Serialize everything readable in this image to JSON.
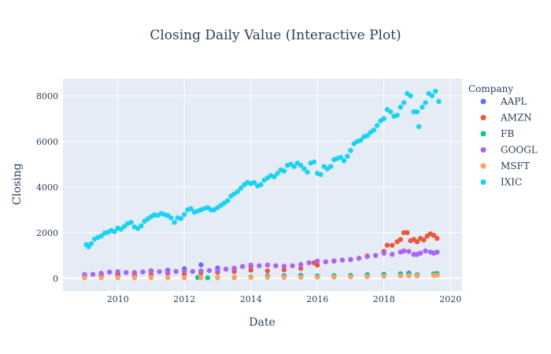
{
  "chart_data": {
    "type": "scatter",
    "title": "Closing Daily Value (Interactive Plot)",
    "xlabel": "Date",
    "ylabel": "Closing",
    "x_range": [
      2008.35,
      2020.35
    ],
    "ylim": [
      -560,
      8750
    ],
    "x_ticks": [
      2010,
      2012,
      2014,
      2016,
      2018,
      2020
    ],
    "y_ticks": [
      0,
      2000,
      4000,
      6000,
      8000
    ],
    "x_tick_labels": [
      "2010",
      "2012",
      "2014",
      "2016",
      "2018",
      "2020"
    ],
    "y_tick_labels": [
      "0",
      "2000",
      "4000",
      "6000",
      "8000"
    ],
    "grid": true,
    "legend_title": "Company",
    "legend_position": "right",
    "series": [
      {
        "name": "AAPL",
        "color": "#636efa",
        "points": [
          [
            2009.0,
            85
          ],
          [
            2009.5,
            140
          ],
          [
            2010.0,
            200
          ],
          [
            2010.5,
            250
          ],
          [
            2011.0,
            330
          ],
          [
            2011.5,
            350
          ],
          [
            2012.0,
            420
          ],
          [
            2012.5,
            590
          ],
          [
            2013.0,
            450
          ],
          [
            2013.5,
            420
          ],
          [
            2014.0,
            530
          ],
          [
            2014.5,
            95
          ],
          [
            2015.0,
            110
          ],
          [
            2015.5,
            125
          ],
          [
            2016.0,
            97
          ],
          [
            2016.5,
            100
          ],
          [
            2017.0,
            120
          ],
          [
            2017.5,
            150
          ],
          [
            2018.0,
            170
          ],
          [
            2018.5,
            195
          ],
          [
            2018.75,
            225
          ],
          [
            2019.0,
            155
          ],
          [
            2019.5,
            200
          ],
          [
            2019.6,
            208
          ]
        ]
      },
      {
        "name": "AMZN",
        "color": "#ef553b",
        "points": [
          [
            2009.0,
            55
          ],
          [
            2009.5,
            80
          ],
          [
            2010.0,
            125
          ],
          [
            2010.5,
            120
          ],
          [
            2011.0,
            185
          ],
          [
            2011.5,
            215
          ],
          [
            2012.0,
            180
          ],
          [
            2012.5,
            235
          ],
          [
            2013.0,
            260
          ],
          [
            2013.5,
            300
          ],
          [
            2014.0,
            360
          ],
          [
            2014.5,
            320
          ],
          [
            2015.0,
            370
          ],
          [
            2015.5,
            430
          ],
          [
            2015.9,
            680
          ],
          [
            2016.0,
            580
          ],
          [
            2016.5,
            760
          ],
          [
            2017.0,
            820
          ],
          [
            2017.5,
            980
          ],
          [
            2018.0,
            1180
          ],
          [
            2018.1,
            1450
          ],
          [
            2018.25,
            1450
          ],
          [
            2018.4,
            1600
          ],
          [
            2018.5,
            1700
          ],
          [
            2018.6,
            2000
          ],
          [
            2018.7,
            2000
          ],
          [
            2018.8,
            1650
          ],
          [
            2018.9,
            1700
          ],
          [
            2019.0,
            1600
          ],
          [
            2019.1,
            1750
          ],
          [
            2019.2,
            1680
          ],
          [
            2019.3,
            1850
          ],
          [
            2019.4,
            1950
          ],
          [
            2019.5,
            1880
          ],
          [
            2019.6,
            1750
          ]
        ]
      },
      {
        "name": "FB",
        "color": "#00cc96",
        "points": [
          [
            2012.4,
            38
          ],
          [
            2012.7,
            22
          ],
          [
            2013.0,
            28
          ],
          [
            2013.5,
            45
          ],
          [
            2014.0,
            60
          ],
          [
            2014.5,
            75
          ],
          [
            2015.0,
            78
          ],
          [
            2015.5,
            90
          ],
          [
            2016.0,
            105
          ],
          [
            2016.5,
            120
          ],
          [
            2017.0,
            130
          ],
          [
            2017.5,
            160
          ],
          [
            2018.0,
            180
          ],
          [
            2018.5,
            195
          ],
          [
            2018.75,
            160
          ],
          [
            2019.0,
            140
          ],
          [
            2019.5,
            190
          ],
          [
            2019.6,
            195
          ]
        ]
      },
      {
        "name": "GOOGL",
        "color": "#ab63fa",
        "points": [
          [
            2009.0,
            165
          ],
          [
            2009.25,
            175
          ],
          [
            2009.5,
            220
          ],
          [
            2009.75,
            270
          ],
          [
            2010.0,
            290
          ],
          [
            2010.25,
            250
          ],
          [
            2010.5,
            240
          ],
          [
            2010.75,
            280
          ],
          [
            2011.0,
            300
          ],
          [
            2011.25,
            290
          ],
          [
            2011.5,
            260
          ],
          [
            2011.75,
            300
          ],
          [
            2012.0,
            310
          ],
          [
            2012.25,
            300
          ],
          [
            2012.5,
            320
          ],
          [
            2012.75,
            340
          ],
          [
            2013.0,
            350
          ],
          [
            2013.25,
            400
          ],
          [
            2013.5,
            440
          ],
          [
            2013.75,
            520
          ],
          [
            2014.0,
            580
          ],
          [
            2014.25,
            550
          ],
          [
            2014.5,
            580
          ],
          [
            2014.75,
            550
          ],
          [
            2015.0,
            530
          ],
          [
            2015.25,
            550
          ],
          [
            2015.5,
            600
          ],
          [
            2015.75,
            680
          ],
          [
            2016.0,
            750
          ],
          [
            2016.25,
            720
          ],
          [
            2016.5,
            760
          ],
          [
            2016.75,
            800
          ],
          [
            2017.0,
            820
          ],
          [
            2017.25,
            880
          ],
          [
            2017.5,
            950
          ],
          [
            2017.75,
            1000
          ],
          [
            2018.0,
            1100
          ],
          [
            2018.25,
            1050
          ],
          [
            2018.5,
            1150
          ],
          [
            2018.6,
            1200
          ],
          [
            2018.75,
            1180
          ],
          [
            2018.9,
            1050
          ],
          [
            2019.0,
            1050
          ],
          [
            2019.1,
            1100
          ],
          [
            2019.25,
            1200
          ],
          [
            2019.4,
            1150
          ],
          [
            2019.5,
            1100
          ],
          [
            2019.6,
            1150
          ]
        ]
      },
      {
        "name": "MSFT",
        "color": "#ffa15a",
        "points": [
          [
            2009.0,
            20
          ],
          [
            2009.5,
            25
          ],
          [
            2010.0,
            28
          ],
          [
            2010.5,
            26
          ],
          [
            2011.0,
            27
          ],
          [
            2011.5,
            25
          ],
          [
            2012.0,
            28
          ],
          [
            2012.5,
            30
          ],
          [
            2013.0,
            28
          ],
          [
            2013.5,
            33
          ],
          [
            2014.0,
            38
          ],
          [
            2014.5,
            43
          ],
          [
            2015.0,
            45
          ],
          [
            2015.5,
            46
          ],
          [
            2016.0,
            52
          ],
          [
            2016.5,
            55
          ],
          [
            2017.0,
            62
          ],
          [
            2017.5,
            70
          ],
          [
            2018.0,
            90
          ],
          [
            2018.5,
            100
          ],
          [
            2018.75,
            110
          ],
          [
            2019.0,
            100
          ],
          [
            2019.5,
            130
          ],
          [
            2019.6,
            135
          ]
        ]
      },
      {
        "name": "IXIC",
        "color": "#19d3f3",
        "points": [
          [
            2009.05,
            1480
          ],
          [
            2009.12,
            1380
          ],
          [
            2009.2,
            1520
          ],
          [
            2009.3,
            1720
          ],
          [
            2009.4,
            1790
          ],
          [
            2009.5,
            1850
          ],
          [
            2009.6,
            1980
          ],
          [
            2009.7,
            2020
          ],
          [
            2009.8,
            2100
          ],
          [
            2009.9,
            2050
          ],
          [
            2010.0,
            2200
          ],
          [
            2010.1,
            2150
          ],
          [
            2010.2,
            2280
          ],
          [
            2010.3,
            2400
          ],
          [
            2010.4,
            2450
          ],
          [
            2010.5,
            2250
          ],
          [
            2010.6,
            2180
          ],
          [
            2010.7,
            2300
          ],
          [
            2010.8,
            2500
          ],
          [
            2010.9,
            2600
          ],
          [
            2011.0,
            2700
          ],
          [
            2011.1,
            2780
          ],
          [
            2011.2,
            2760
          ],
          [
            2011.3,
            2840
          ],
          [
            2011.4,
            2800
          ],
          [
            2011.5,
            2750
          ],
          [
            2011.6,
            2650
          ],
          [
            2011.7,
            2450
          ],
          [
            2011.8,
            2650
          ],
          [
            2011.9,
            2620
          ],
          [
            2012.0,
            2800
          ],
          [
            2012.1,
            3000
          ],
          [
            2012.2,
            3050
          ],
          [
            2012.3,
            2900
          ],
          [
            2012.4,
            2950
          ],
          [
            2012.5,
            3000
          ],
          [
            2012.6,
            3060
          ],
          [
            2012.7,
            3100
          ],
          [
            2012.8,
            3000
          ],
          [
            2012.9,
            3000
          ],
          [
            2013.0,
            3100
          ],
          [
            2013.1,
            3200
          ],
          [
            2013.2,
            3300
          ],
          [
            2013.3,
            3400
          ],
          [
            2013.4,
            3600
          ],
          [
            2013.5,
            3700
          ],
          [
            2013.6,
            3800
          ],
          [
            2013.7,
            3950
          ],
          [
            2013.8,
            4100
          ],
          [
            2013.9,
            4200
          ],
          [
            2014.0,
            4150
          ],
          [
            2014.1,
            4200
          ],
          [
            2014.2,
            4050
          ],
          [
            2014.3,
            4100
          ],
          [
            2014.4,
            4300
          ],
          [
            2014.5,
            4400
          ],
          [
            2014.6,
            4500
          ],
          [
            2014.7,
            4450
          ],
          [
            2014.8,
            4600
          ],
          [
            2014.9,
            4750
          ],
          [
            2015.0,
            4700
          ],
          [
            2015.1,
            4950
          ],
          [
            2015.2,
            5000
          ],
          [
            2015.3,
            4900
          ],
          [
            2015.4,
            5050
          ],
          [
            2015.5,
            4950
          ],
          [
            2015.6,
            4800
          ],
          [
            2015.7,
            4650
          ],
          [
            2015.8,
            5050
          ],
          [
            2015.9,
            5100
          ],
          [
            2016.0,
            4600
          ],
          [
            2016.1,
            4550
          ],
          [
            2016.2,
            4900
          ],
          [
            2016.3,
            4800
          ],
          [
            2016.4,
            4900
          ],
          [
            2016.5,
            5200
          ],
          [
            2016.6,
            5250
          ],
          [
            2016.7,
            5300
          ],
          [
            2016.8,
            5150
          ],
          [
            2016.9,
            5350
          ],
          [
            2017.0,
            5600
          ],
          [
            2017.1,
            5900
          ],
          [
            2017.2,
            6000
          ],
          [
            2017.3,
            6050
          ],
          [
            2017.4,
            6200
          ],
          [
            2017.5,
            6250
          ],
          [
            2017.6,
            6400
          ],
          [
            2017.7,
            6500
          ],
          [
            2017.8,
            6700
          ],
          [
            2017.9,
            6900
          ],
          [
            2018.0,
            7000
          ],
          [
            2018.1,
            7400
          ],
          [
            2018.2,
            7300
          ],
          [
            2018.3,
            7100
          ],
          [
            2018.4,
            7150
          ],
          [
            2018.5,
            7500
          ],
          [
            2018.6,
            7700
          ],
          [
            2018.7,
            8100
          ],
          [
            2018.8,
            8000
          ],
          [
            2018.9,
            7300
          ],
          [
            2019.0,
            7300
          ],
          [
            2019.05,
            6650
          ],
          [
            2019.15,
            7500
          ],
          [
            2019.25,
            7700
          ],
          [
            2019.35,
            8100
          ],
          [
            2019.45,
            8000
          ],
          [
            2019.55,
            8200
          ],
          [
            2019.65,
            7750
          ]
        ]
      }
    ]
  }
}
